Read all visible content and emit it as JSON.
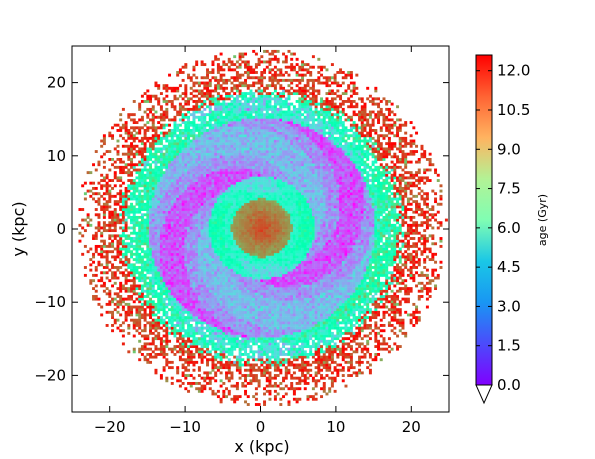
{
  "chart_data": {
    "type": "heatmap",
    "title": "",
    "xlabel": "x (kpc)",
    "ylabel": "y (kpc)",
    "xlim": [
      -25,
      25
    ],
    "ylim": [
      -25,
      25
    ],
    "xticks": [
      -20,
      -10,
      0,
      10,
      20
    ],
    "yticks": [
      -20,
      -10,
      0,
      10,
      20
    ],
    "colorbar": {
      "label": "age (Gyr)",
      "range": [
        0.0,
        12.6
      ],
      "ticks": [
        "0.0",
        "1.5",
        "3.0",
        "4.5",
        "6.0",
        "7.5",
        "9.0",
        "10.5",
        "12.0"
      ],
      "tick_values": [
        0.0,
        1.5,
        3.0,
        4.5,
        6.0,
        7.5,
        9.0,
        10.5,
        12.0
      ],
      "colormap": "rainbow",
      "extend": "min"
    },
    "description_regions": [
      {
        "region": "bulge",
        "r_range_kpc": [
          0,
          4
        ],
        "age_gyr": 11.0
      },
      {
        "region": "inner_disk",
        "r_range_kpc": [
          4,
          7
        ],
        "age_gyr": 5.5
      },
      {
        "region": "disk_spiral_arms",
        "r_range_kpc": [
          7,
          15
        ],
        "age_gyr": 2.5
      },
      {
        "region": "outer_ring",
        "r_range_kpc": [
          15,
          19
        ],
        "age_gyr": 6.0
      },
      {
        "region": "outskirts",
        "r_range_kpc": [
          19,
          24.5
        ],
        "age_gyr": 11.5
      }
    ],
    "grid": false,
    "legend": "none"
  }
}
